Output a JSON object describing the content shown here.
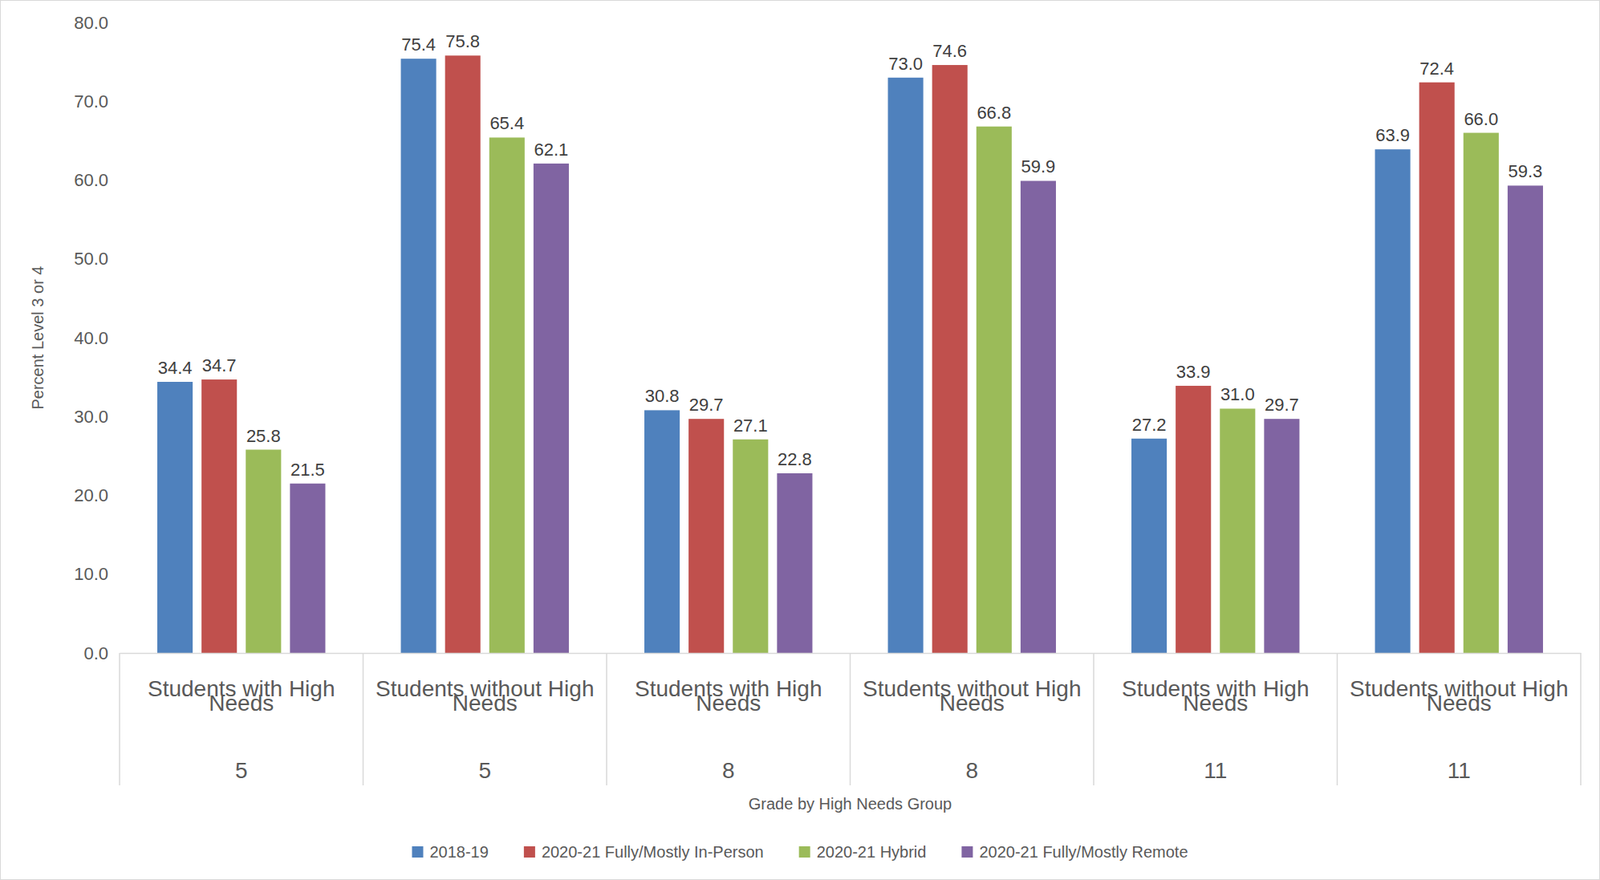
{
  "chart_data": {
    "type": "bar",
    "categories": [
      "Students with High Needs",
      "Students without High Needs",
      "Students with High Needs",
      "Students without High Needs",
      "Students with High Needs",
      "Students without High Needs"
    ],
    "grades": [
      5,
      5,
      8,
      8,
      11,
      11
    ],
    "x_label": "Grade by High Needs Group",
    "y_label": "Percent Level 3 or 4",
    "ylim": [
      0,
      80
    ],
    "yticks": [
      {
        "value": 0,
        "label": "0.0"
      },
      {
        "value": 10,
        "label": "10.0"
      },
      {
        "value": 20,
        "label": "20.0"
      },
      {
        "value": 30,
        "label": "30.0"
      },
      {
        "value": 40,
        "label": "40.0"
      },
      {
        "value": 50,
        "label": "50.0"
      },
      {
        "value": 60,
        "label": "60.0"
      },
      {
        "value": 70,
        "label": "70.0"
      },
      {
        "value": 80,
        "label": "80.0"
      }
    ],
    "grid": false,
    "legend": "bottom",
    "data_labels": true,
    "series": [
      {
        "name": "2018-19",
        "color": "#4f81bd",
        "values": [
          34.4,
          75.4,
          30.8,
          73.0,
          27.2,
          63.9
        ],
        "value_labels": [
          "34.4",
          "75.4",
          "30.8",
          "73.0",
          "27.2",
          "63.9"
        ]
      },
      {
        "name": "2020-21 Fully/Mostly In-Person",
        "color": "#c0504d",
        "values": [
          34.7,
          75.8,
          29.7,
          74.6,
          33.9,
          72.4
        ],
        "value_labels": [
          "34.7",
          "75.8",
          "29.7",
          "74.6",
          "33.9",
          "72.4"
        ]
      },
      {
        "name": "2020-21 Hybrid",
        "color": "#9bbb59",
        "values": [
          25.8,
          65.4,
          27.1,
          66.8,
          31.0,
          66.0
        ],
        "value_labels": [
          "25.8",
          "65.4",
          "27.1",
          "66.8",
          "31.0",
          "66.0"
        ]
      },
      {
        "name": "2020-21 Fully/Mostly Remote",
        "color": "#8064a2",
        "values": [
          21.5,
          62.1,
          22.8,
          59.9,
          29.7,
          59.3
        ],
        "value_labels": [
          "21.5",
          "62.1",
          "22.8",
          "59.9",
          "29.7",
          "59.3"
        ]
      }
    ]
  }
}
